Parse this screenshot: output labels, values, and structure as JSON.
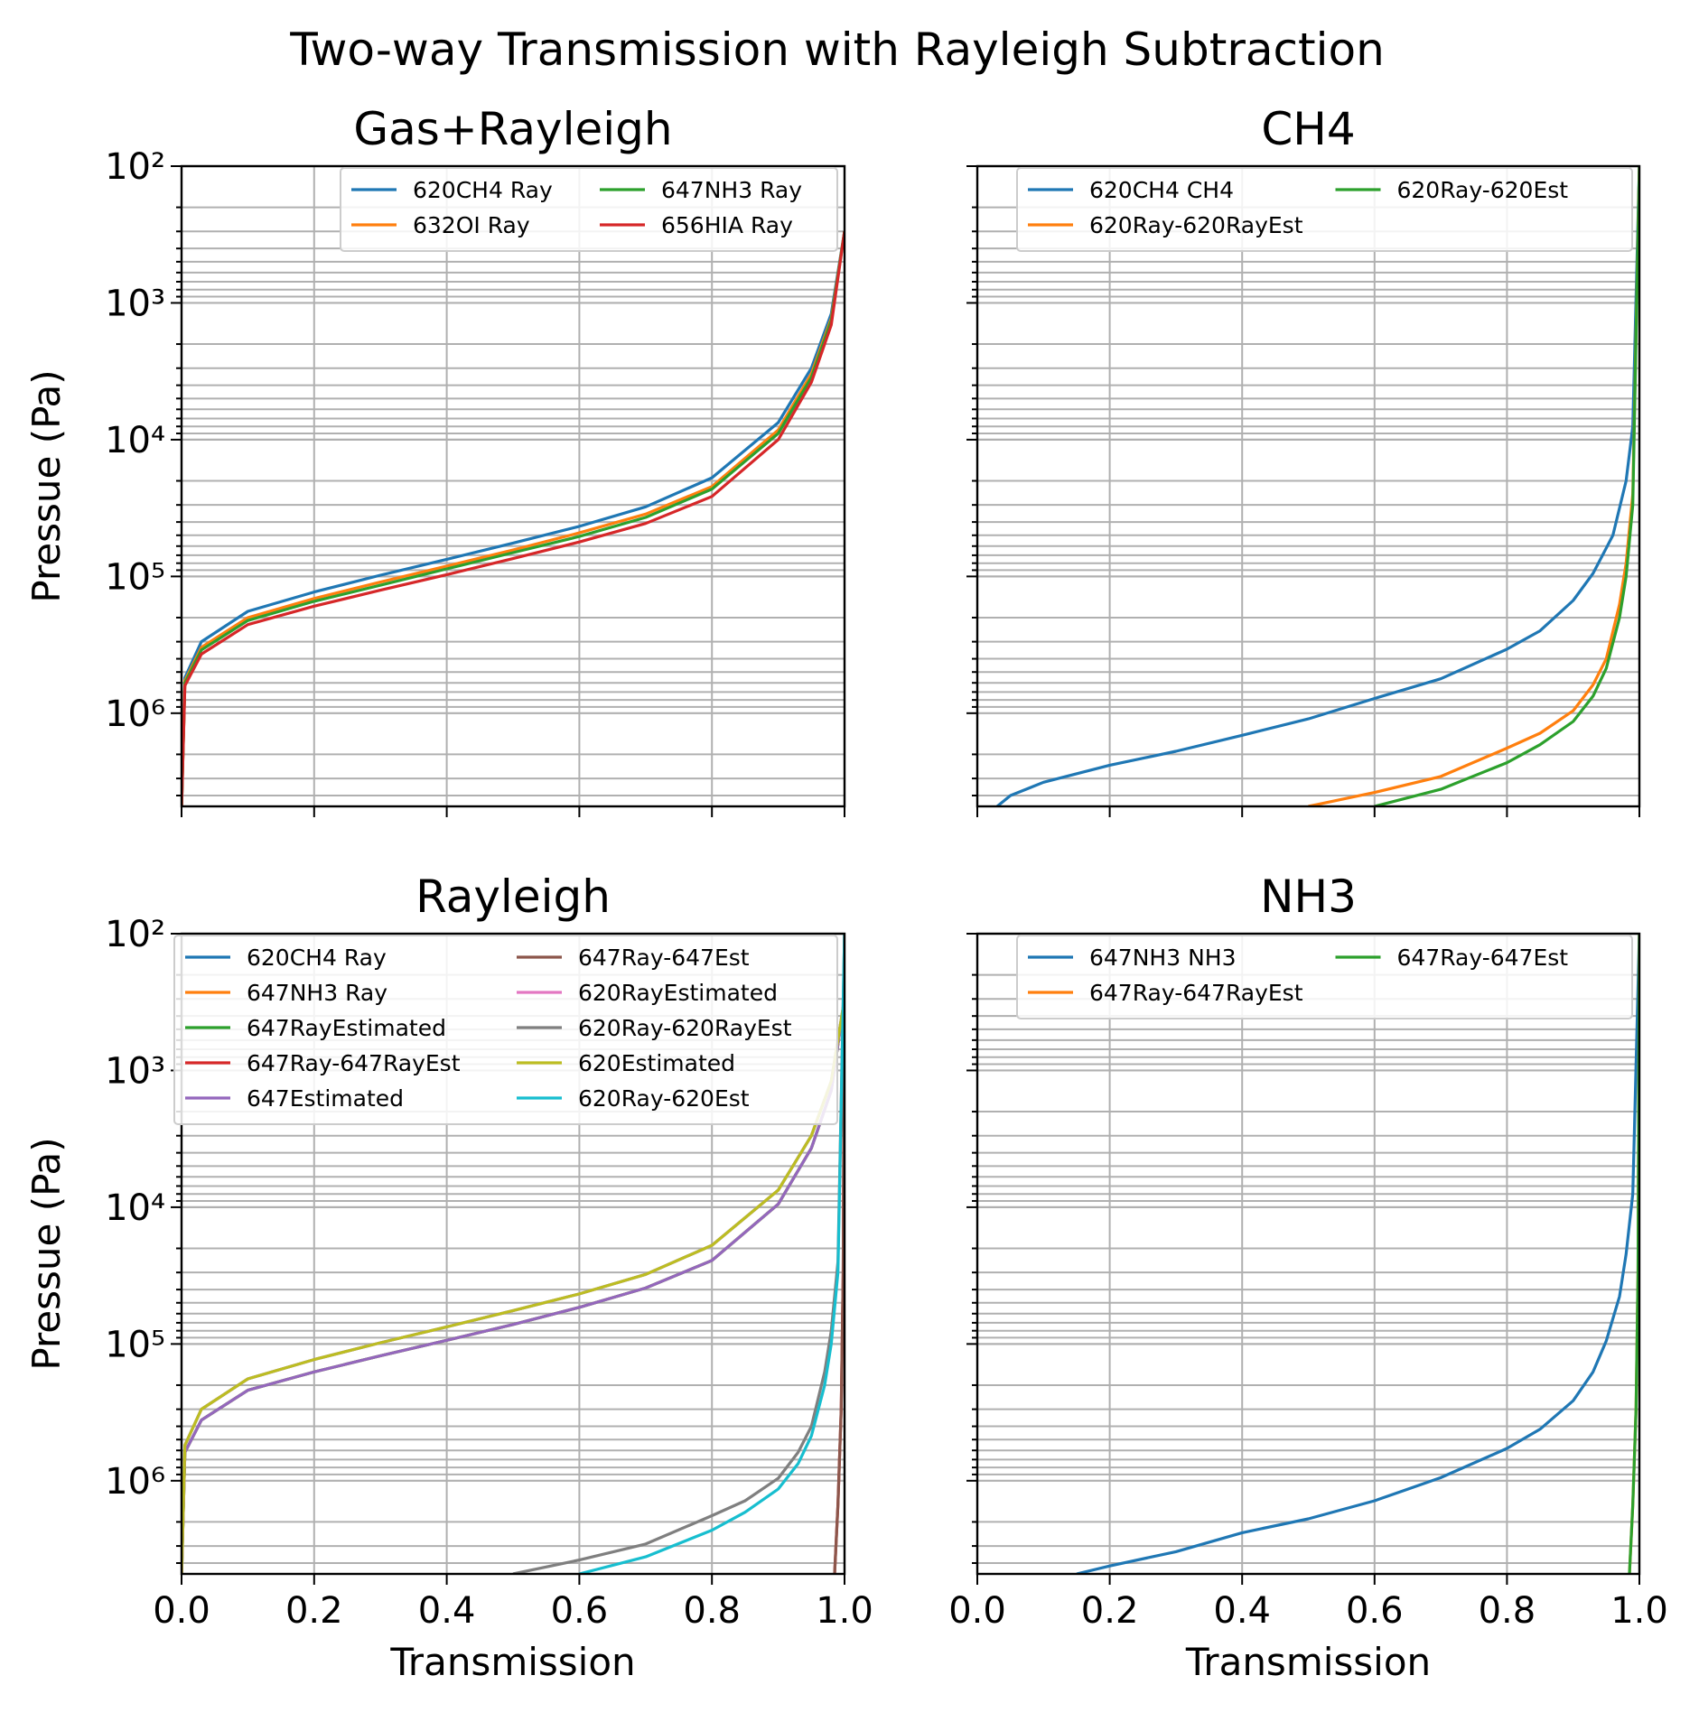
{
  "suptitle": "Two-way Transmission with Rayleigh Subtraction",
  "colors": {
    "C0": "#1f77b4",
    "C1": "#ff7f0e",
    "C2": "#2ca02c",
    "C3": "#d62728",
    "C4": "#9467bd",
    "C5": "#8c564b",
    "C6": "#e377c2",
    "C7": "#7f7f7f",
    "C8": "#bcbd22",
    "C9": "#17becf",
    "grid": "#b0b0b0"
  },
  "chart_data": [
    {
      "type": "line",
      "title": "Gas+Rayleigh",
      "xlabel": "",
      "ylabel": "Pressue (Pa)",
      "xlim": [
        0.0,
        1.0
      ],
      "ylim": [
        4800000,
        100
      ],
      "yscale": "log (inverted)",
      "grid": true,
      "legend": "upper-right, 2 columns",
      "series": [
        {
          "name": "620CH4 Ray",
          "color": "C0",
          "x": [
            0.0,
            0.005,
            0.03,
            0.1,
            0.2,
            0.3,
            0.4,
            0.5,
            0.6,
            0.7,
            0.8,
            0.9,
            0.95,
            0.98,
            1.0
          ],
          "y": [
            5000000,
            550000,
            300000,
            180000,
            130000,
            98000,
            75000,
            57000,
            43000,
            31000,
            19000,
            7500,
            3000,
            1200,
            300
          ]
        },
        {
          "name": "632OI Ray",
          "color": "C1",
          "x": [
            0.0,
            0.005,
            0.03,
            0.1,
            0.2,
            0.3,
            0.4,
            0.5,
            0.6,
            0.7,
            0.8,
            0.9,
            0.95,
            0.98,
            1.0
          ],
          "y": [
            5000000,
            580000,
            330000,
            200000,
            145000,
            110000,
            84000,
            64000,
            48000,
            35000,
            22000,
            8500,
            3300,
            1300,
            300
          ]
        },
        {
          "name": "647NH3 Ray",
          "color": "C2",
          "x": [
            0.0,
            0.005,
            0.03,
            0.1,
            0.2,
            0.3,
            0.4,
            0.5,
            0.6,
            0.7,
            0.8,
            0.9,
            0.95,
            0.98,
            1.0
          ],
          "y": [
            5000000,
            600000,
            345000,
            210000,
            152000,
            116000,
            88000,
            67000,
            51000,
            37000,
            23000,
            9000,
            3500,
            1350,
            300
          ]
        },
        {
          "name": "656HIA Ray",
          "color": "C3",
          "x": [
            0.0,
            0.005,
            0.03,
            0.1,
            0.2,
            0.3,
            0.4,
            0.5,
            0.6,
            0.7,
            0.8,
            0.9,
            0.95,
            0.98,
            1.0
          ],
          "y": [
            5000000,
            630000,
            370000,
            225000,
            165000,
            126000,
            97000,
            74000,
            56000,
            41000,
            26000,
            10000,
            3800,
            1450,
            300
          ]
        }
      ]
    },
    {
      "type": "line",
      "title": "CH4",
      "xlabel": "",
      "ylabel": "",
      "xlim": [
        0.0,
        1.0
      ],
      "ylim": [
        4800000,
        100
      ],
      "yscale": "log (inverted)",
      "grid": true,
      "legend": "upper-right, 2 columns",
      "series": [
        {
          "name": "620CH4 CH4",
          "color": "C0",
          "x": [
            0.03,
            0.05,
            0.1,
            0.2,
            0.3,
            0.4,
            0.5,
            0.6,
            0.7,
            0.8,
            0.85,
            0.9,
            0.93,
            0.96,
            0.98,
            0.99,
            1.0
          ],
          "y": [
            4800000,
            4000000,
            3200000,
            2400000,
            1900000,
            1450000,
            1100000,
            780000,
            560000,
            340000,
            250000,
            150000,
            95000,
            50000,
            20000,
            8000,
            100
          ]
        },
        {
          "name": "620Ray-620RayEst",
          "color": "C1",
          "x": [
            0.5,
            0.6,
            0.7,
            0.8,
            0.85,
            0.9,
            0.93,
            0.95,
            0.97,
            0.98,
            0.99,
            1.0
          ],
          "y": [
            4800000,
            3800000,
            2900000,
            1800000,
            1400000,
            960000,
            620000,
            400000,
            160000,
            80000,
            25000,
            100
          ]
        },
        {
          "name": "620Ray-620Est",
          "color": "C2",
          "x": [
            0.6,
            0.7,
            0.8,
            0.85,
            0.9,
            0.93,
            0.95,
            0.97,
            0.98,
            0.99,
            1.0
          ],
          "y": [
            4800000,
            3600000,
            2300000,
            1700000,
            1150000,
            750000,
            470000,
            200000,
            100000,
            30000,
            100
          ]
        }
      ]
    },
    {
      "type": "line",
      "title": "Rayleigh",
      "xlabel": "Transmission",
      "ylabel": "Pressue (Pa)",
      "xlim": [
        0.0,
        1.0
      ],
      "ylim": [
        4800000,
        100
      ],
      "yscale": "log (inverted)",
      "grid": true,
      "legend": "upper-right, 2 columns",
      "series": [
        {
          "name": "620CH4 Ray",
          "color": "C0",
          "x": [
            0.0,
            0.005,
            0.03,
            0.1,
            0.2,
            0.3,
            0.4,
            0.5,
            0.6,
            0.7,
            0.8,
            0.9,
            0.95,
            0.98,
            1.0
          ],
          "y": [
            5000000,
            550000,
            300000,
            180000,
            130000,
            98000,
            75000,
            57000,
            43000,
            31000,
            19000,
            7500,
            3000,
            1200,
            300
          ]
        },
        {
          "name": "647NH3 Ray",
          "color": "C1",
          "x": [
            0.0,
            0.005,
            0.03,
            0.1,
            0.2,
            0.3,
            0.4,
            0.5,
            0.6,
            0.7,
            0.8,
            0.9,
            0.95,
            0.98,
            1.0
          ],
          "y": [
            5000000,
            620000,
            360000,
            218000,
            160000,
            122000,
            94000,
            72000,
            54000,
            39000,
            24500,
            9500,
            3700,
            1400,
            300
          ]
        },
        {
          "name": "647RayEstimated",
          "color": "C2",
          "x": [
            0.0,
            0.005,
            0.03,
            0.1,
            0.2,
            0.3,
            0.4,
            0.5,
            0.6,
            0.7,
            0.8,
            0.9,
            0.95,
            0.98,
            1.0
          ],
          "y": [
            5000000,
            620000,
            360000,
            218000,
            160000,
            122000,
            94000,
            72000,
            54000,
            39000,
            24500,
            9500,
            3700,
            1400,
            300
          ]
        },
        {
          "name": "647Ray-647RayEst",
          "color": "C3",
          "x": [
            0.985,
            0.99,
            0.995,
            0.998,
            1.0
          ],
          "y": [
            4800000,
            1500000,
            300000,
            30000,
            100
          ]
        },
        {
          "name": "647Estimated",
          "color": "C4",
          "x": [
            0.0,
            0.005,
            0.03,
            0.1,
            0.2,
            0.3,
            0.4,
            0.5,
            0.6,
            0.7,
            0.8,
            0.9,
            0.95,
            0.98,
            1.0
          ],
          "y": [
            5000000,
            620000,
            360000,
            218000,
            160000,
            122000,
            94000,
            72000,
            54000,
            39000,
            24500,
            9500,
            3700,
            1400,
            300
          ]
        },
        {
          "name": "647Ray-647Est",
          "color": "C5",
          "x": [
            0.985,
            0.99,
            0.995,
            0.998,
            1.0
          ],
          "y": [
            4800000,
            1500000,
            300000,
            30000,
            100
          ]
        },
        {
          "name": "620RayEstimated",
          "color": "C6",
          "x": [
            0.0,
            0.005,
            0.03,
            0.1,
            0.2,
            0.3,
            0.4,
            0.5,
            0.6,
            0.7,
            0.8,
            0.9,
            0.95,
            0.98,
            1.0
          ],
          "y": [
            5000000,
            550000,
            300000,
            180000,
            130000,
            98000,
            75000,
            57000,
            43000,
            31000,
            19000,
            7500,
            3000,
            1200,
            300
          ]
        },
        {
          "name": "620Ray-620RayEst",
          "color": "C7",
          "x": [
            0.5,
            0.6,
            0.7,
            0.8,
            0.85,
            0.9,
            0.93,
            0.95,
            0.97,
            0.98,
            0.99,
            1.0
          ],
          "y": [
            4800000,
            3800000,
            2900000,
            1800000,
            1400000,
            960000,
            620000,
            400000,
            160000,
            80000,
            25000,
            100
          ]
        },
        {
          "name": "620Estimated",
          "color": "C8",
          "x": [
            0.0,
            0.005,
            0.03,
            0.1,
            0.2,
            0.3,
            0.4,
            0.5,
            0.6,
            0.7,
            0.8,
            0.9,
            0.95,
            0.98,
            1.0
          ],
          "y": [
            5000000,
            550000,
            300000,
            180000,
            130000,
            98000,
            75000,
            57000,
            43000,
            31000,
            19000,
            7500,
            3000,
            1200,
            300
          ]
        },
        {
          "name": "620Ray-620Est",
          "color": "C9",
          "x": [
            0.6,
            0.7,
            0.8,
            0.85,
            0.9,
            0.93,
            0.95,
            0.97,
            0.98,
            0.99,
            1.0
          ],
          "y": [
            4800000,
            3600000,
            2300000,
            1700000,
            1150000,
            750000,
            470000,
            200000,
            100000,
            30000,
            100
          ]
        }
      ]
    },
    {
      "type": "line",
      "title": "NH3",
      "xlabel": "Transmission",
      "ylabel": "",
      "xlim": [
        0.0,
        1.0
      ],
      "ylim": [
        4800000,
        100
      ],
      "yscale": "log (inverted)",
      "grid": true,
      "legend": "upper-right, 2 columns",
      "series": [
        {
          "name": "647NH3 NH3",
          "color": "C0",
          "x": [
            0.15,
            0.2,
            0.3,
            0.4,
            0.5,
            0.6,
            0.7,
            0.8,
            0.85,
            0.9,
            0.93,
            0.95,
            0.97,
            0.98,
            0.99,
            1.0
          ],
          "y": [
            4800000,
            4200000,
            3300000,
            2400000,
            1900000,
            1400000,
            950000,
            580000,
            420000,
            260000,
            160000,
            95000,
            45000,
            22000,
            8000,
            100
          ]
        },
        {
          "name": "647Ray-647RayEst",
          "color": "C1",
          "x": [
            0.985,
            0.99,
            0.995,
            0.998,
            1.0
          ],
          "y": [
            4800000,
            1500000,
            300000,
            30000,
            100
          ]
        },
        {
          "name": "647Ray-647Est",
          "color": "C2",
          "x": [
            0.985,
            0.99,
            0.995,
            0.998,
            1.0
          ],
          "y": [
            4800000,
            1500000,
            300000,
            30000,
            100
          ]
        }
      ]
    }
  ]
}
